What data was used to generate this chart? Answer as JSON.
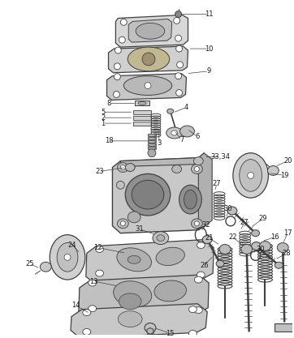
{
  "bg_color": "#ffffff",
  "line_color": "#404040",
  "label_color": "#1a1a1a",
  "fig_width": 3.62,
  "fig_height": 4.17,
  "dpi": 100,
  "label_fontsize": 6.0
}
